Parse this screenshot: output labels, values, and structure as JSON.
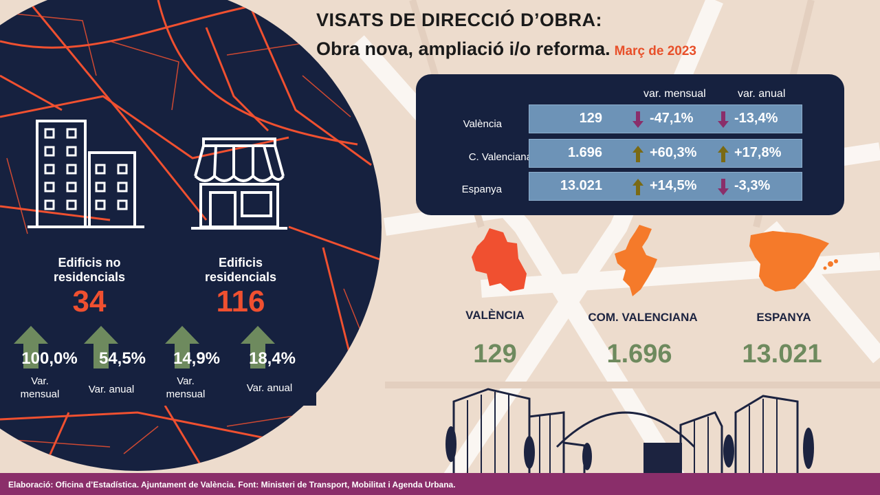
{
  "title": {
    "line1": "VISATS DE DIRECCIÓ D’OBRA:",
    "line2": "Obra nova, ampliació i/o reforma.",
    "date": "Març de 2023"
  },
  "table": {
    "headers": {
      "monthly": "var. mensual",
      "annual": "var. anual"
    },
    "rows": [
      {
        "label": "València",
        "value": "129",
        "monthly": "-47,1%",
        "monthly_dir": "down",
        "annual": "-13,4%",
        "annual_dir": "down"
      },
      {
        "label": "C. Valenciana",
        "value": "1.696",
        "monthly": "+60,3%",
        "monthly_dir": "up",
        "annual": "+17,8%",
        "annual_dir": "up"
      },
      {
        "label": "Espanya",
        "value": "13.021",
        "monthly": "+14,5%",
        "monthly_dir": "up",
        "annual": "-3,3%",
        "annual_dir": "down"
      }
    ]
  },
  "categories": [
    {
      "label": "Edificis no residencials",
      "value": "34",
      "monthly": "100,0%",
      "annual": "54,5%"
    },
    {
      "label": "Edificis residencials",
      "value": "116",
      "monthly": "14,9%",
      "annual": "18,4%"
    }
  ],
  "var_labels": {
    "monthly": "Var. mensual",
    "annual": "Var. anual"
  },
  "regions": [
    {
      "name": "VALÈNCIA",
      "value": "129"
    },
    {
      "name": "COM. VALENCIANA",
      "value": "1.696"
    },
    {
      "name": "ESPANYA",
      "value": "13.021"
    }
  ],
  "colors": {
    "navy": "#16213f",
    "orange": "#f05030",
    "green": "#6e8a5e",
    "up_arrow": "#7a6a14",
    "down_arrow": "#8a2e6a",
    "footer": "#8a2e6a"
  },
  "footer": "Elaboració: Oficina d’Estadística. Ajuntament de València. Font: Ministeri de Transport, Mobilitat i Agenda Urbana."
}
